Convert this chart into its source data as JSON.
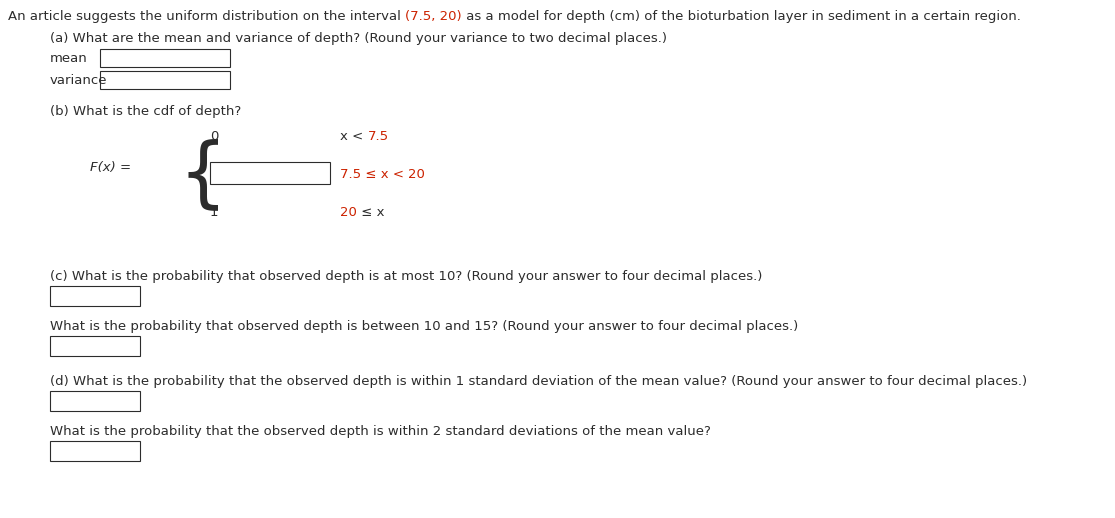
{
  "bg_color": "#ffffff",
  "text_color": "#2c2c2c",
  "red_color": "#cc2200",
  "orange_color": "#cc6600",
  "font_size": 9.5,
  "title_parts": [
    [
      "An article suggests the uniform distribution on the interval ",
      "#2c2c2c"
    ],
    [
      "(7.5, 20)",
      "#cc2200"
    ],
    [
      " as a model for depth (cm) of the bioturbation layer in sediment in a certain region.",
      "#2c2c2c"
    ]
  ],
  "part_a": "(a) What are the mean and variance of depth? (Round your variance to two decimal places.)",
  "mean_label": "mean",
  "variance_label": "variance",
  "part_b": "(b) What is the cdf of depth?",
  "fx_text": "F(x) =",
  "case1_val": "0",
  "case1_cond": [
    [
      "x < ",
      "#2c2c2c"
    ],
    [
      "7.5",
      "#cc2200"
    ]
  ],
  "case2_cond": [
    [
      "7.5 ≤ x < ",
      "#cc2200"
    ],
    [
      "20",
      "#cc2200"
    ]
  ],
  "case3_val": "1",
  "case3_cond": [
    [
      "20",
      "#cc2200"
    ],
    [
      " ≤ x",
      "#2c2c2c"
    ]
  ],
  "part_c1": "(c) What is the probability that observed depth is at most 10? (Round your answer to four decimal places.)",
  "part_c2": "What is the probability that observed depth is between 10 and 15? (Round your answer to four decimal places.)",
  "part_d1": "(d) What is the probability that the observed depth is within 1 standard deviation of the mean value? (Round your answer to four decimal places.)",
  "part_d2": "What is the probability that the observed depth is within 2 standard deviations of the mean value?"
}
